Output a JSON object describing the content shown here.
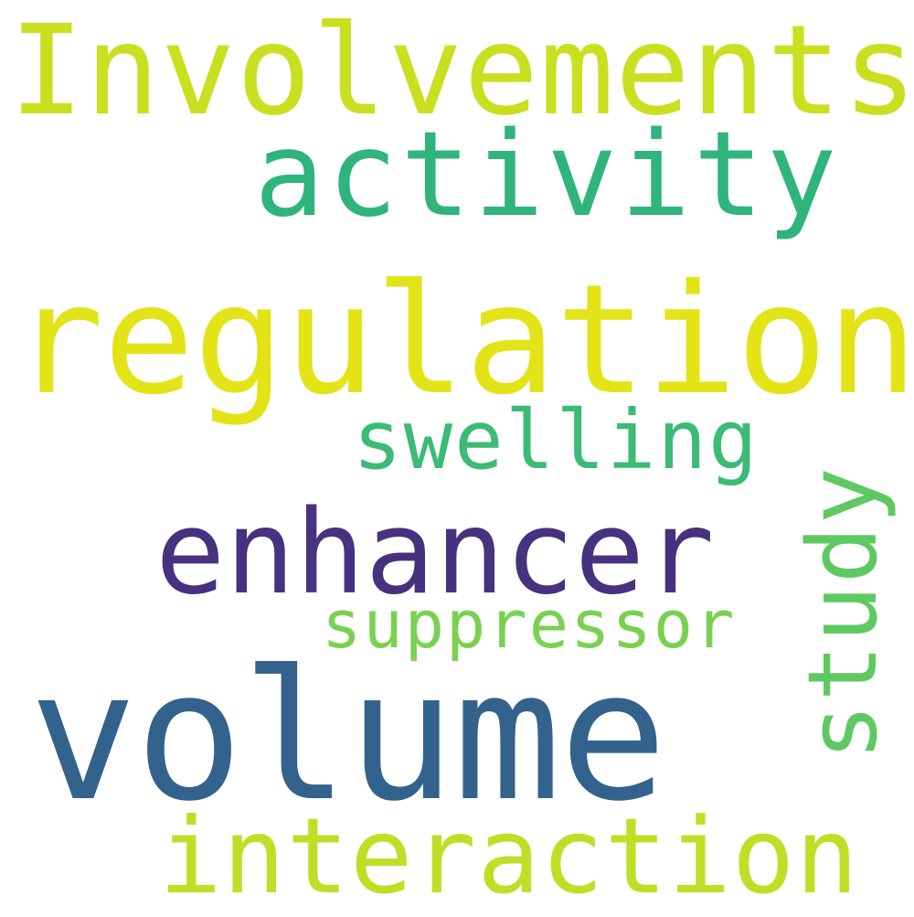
{
  "word_cloud": {
    "background": "#ffffff",
    "words": {
      "involvements": {
        "text": "Involvements",
        "color": "#c8e020"
      },
      "activity": {
        "text": "activity",
        "color": "#2fb47c"
      },
      "regulation": {
        "text": "regulation",
        "color": "#e2e418"
      },
      "swelling": {
        "text": "swelling",
        "color": "#3bbb75"
      },
      "enhancer": {
        "text": "enhancer",
        "color": "#46327e"
      },
      "suppressor": {
        "text": "suppressor",
        "color": "#7ad151"
      },
      "volume": {
        "text": "volume",
        "color": "#33638d"
      },
      "interaction": {
        "text": "interaction",
        "color": "#bddf26"
      },
      "study": {
        "text": "study",
        "color": "#5ec962"
      }
    }
  }
}
